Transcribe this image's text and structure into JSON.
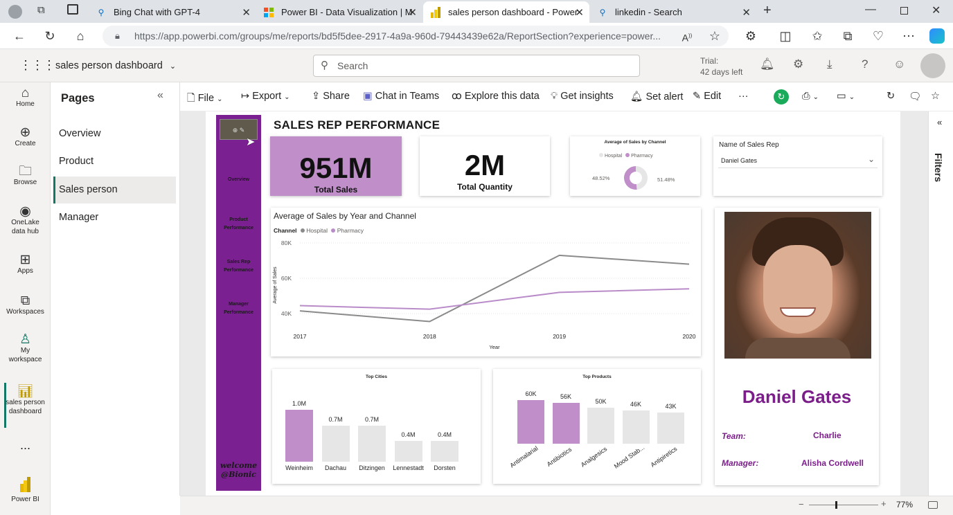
{
  "browser": {
    "tabs": [
      {
        "title": "Bing Chat with GPT-4",
        "icon": "search-icon",
        "active": false
      },
      {
        "title": "Power BI - Data Visualization | M",
        "icon": "microsoft-icon",
        "active": false
      },
      {
        "title": "sales person dashboard - Power",
        "icon": "powerbi-icon",
        "active": true
      },
      {
        "title": "linkedin - Search",
        "icon": "search-icon",
        "active": false
      }
    ],
    "url": "https://app.powerbi.com/groups/me/reports/bd5f5dee-2917-4a9a-960d-79443439e62a/ReportSection?experience=power..."
  },
  "header": {
    "report_name": "sales person dashboard",
    "search_placeholder": "Search",
    "trial_line1": "Trial:",
    "trial_line2": "42 days left"
  },
  "leftnav": {
    "items": [
      {
        "label": "Home",
        "icon": "home-icon"
      },
      {
        "label": "Create",
        "icon": "plus-circle-icon"
      },
      {
        "label": "Browse",
        "icon": "folder-icon"
      },
      {
        "label": "OneLake data hub",
        "label1": "OneLake",
        "label2": "data hub",
        "icon": "onelake-icon"
      },
      {
        "label": "Apps",
        "icon": "apps-icon"
      },
      {
        "label": "Workspaces",
        "icon": "workspaces-icon"
      },
      {
        "label1": "My",
        "label2": "workspace",
        "icon": "person-icon"
      },
      {
        "label1": "sales person",
        "label2": "dashboard",
        "icon": "report-icon"
      },
      {
        "label": "..."
      }
    ],
    "brand": "Power BI"
  },
  "pages": {
    "title": "Pages",
    "items": [
      "Overview",
      "Product",
      "Sales person",
      "Manager"
    ],
    "selected": "Sales person"
  },
  "actions": {
    "file": "File",
    "export": "Export",
    "share": "Share",
    "chat": "Chat in Teams",
    "explore": "Explore this data",
    "insights": "Get insights",
    "alert": "Set alert",
    "edit": "Edit",
    "more": "···"
  },
  "report": {
    "title": "SALES REP PERFORMANCE",
    "nav": {
      "buttons": [
        "Overview",
        "Product Performance",
        "Sales Rep Performance",
        "Manager Performance"
      ],
      "welcome1": "welcome",
      "welcome2": "@Bionic"
    },
    "kpi_sales": {
      "value": "951M",
      "label": "Total Sales"
    },
    "kpi_qty": {
      "value": "2M",
      "label": "Total Quantity"
    },
    "donut": {
      "title": "Average of Sales by Channel",
      "legend": [
        "Hospital",
        "Pharmacy"
      ],
      "left_label": "48.52%",
      "right_label": "51.48%"
    },
    "slicer": {
      "title": "Name of Sales Rep",
      "value": "Daniel Gates"
    },
    "profile": {
      "name": "Daniel Gates",
      "team_label": "Team:",
      "team_value": "Charlie",
      "manager_label": "Manager:",
      "manager_value": "Alisha Cordwell"
    }
  },
  "chart_data": [
    {
      "type": "line",
      "title": "Average of Sales by Year and Channel",
      "legend_title": "Channel",
      "xlabel": "Year",
      "ylabel": "Average of Sales",
      "x": [
        "2017",
        "2018",
        "2019",
        "2020"
      ],
      "yticks": [
        "80K",
        "60K",
        "40K"
      ],
      "ylim": [
        35000,
        80000
      ],
      "series": [
        {
          "name": "Hospital",
          "color": "#8a8a8a",
          "values": [
            41500,
            35500,
            73000,
            68000
          ]
        },
        {
          "name": "Pharmacy",
          "color": "#b98bc9",
          "values": [
            44500,
            42500,
            52000,
            54000
          ]
        }
      ]
    },
    {
      "type": "bar",
      "title": "Top Cities",
      "categories": [
        "Weinheim",
        "Dachau",
        "Ditzingen",
        "Lennestadt",
        "Dorsten"
      ],
      "values": [
        1.0,
        0.7,
        0.7,
        0.4,
        0.4
      ],
      "labels": [
        "1.0M",
        "0.7M",
        "0.7M",
        "0.4M",
        "0.4M"
      ],
      "highlight": [
        0
      ]
    },
    {
      "type": "bar",
      "title": "Top Products",
      "categories": [
        "Antimalarial",
        "Antibiotics",
        "Analgesics",
        "Mood Stab...",
        "Antipiretics"
      ],
      "values": [
        60,
        56,
        50,
        46,
        43
      ],
      "labels": [
        "60K",
        "56K",
        "50K",
        "46K",
        "43K"
      ],
      "highlight": [
        0,
        1
      ]
    },
    {
      "type": "pie",
      "title": "Average of Sales by Channel",
      "categories": [
        "Hospital",
        "Pharmacy"
      ],
      "values": [
        48.52,
        51.48
      ]
    }
  ],
  "status": {
    "zoom": "77%"
  },
  "filters_label": "Filters",
  "colors": {
    "accent_purple": "#7b1e8a",
    "bar_purple": "#c08ec9",
    "bar_grey": "#e6e6e6",
    "nav_purple": "#7b2090"
  }
}
